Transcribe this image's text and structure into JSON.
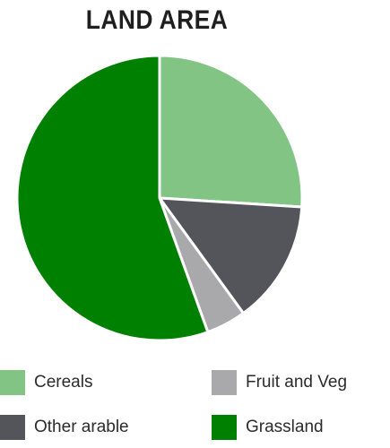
{
  "chart_data": {
    "type": "pie",
    "title": "LAND AREA",
    "categories": [
      "Cereals",
      "Other arable",
      "Fruit and Veg",
      "Grassland"
    ],
    "values": [
      26,
      14,
      4.5,
      55.5
    ],
    "colors": [
      "#82c484",
      "#54555a",
      "#a9a9ab",
      "#008000"
    ],
    "start_angle_deg": 0,
    "direction": "clockwise",
    "slice_border_color": "#ffffff",
    "legend_position": "bottom"
  },
  "legend": {
    "items": [
      {
        "label": "Cereals",
        "color": "#82c484"
      },
      {
        "label": "Fruit and Veg",
        "color": "#a9a9ab"
      },
      {
        "label": "Other arable",
        "color": "#54555a"
      },
      {
        "label": "Grassland",
        "color": "#008000"
      }
    ]
  }
}
